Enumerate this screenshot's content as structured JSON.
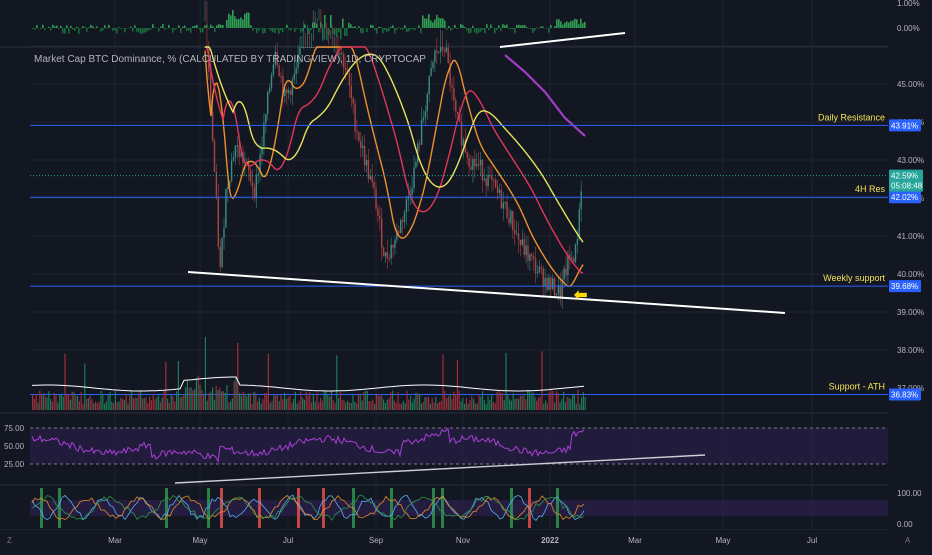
{
  "title": "Market Cap BTC Dominance, % (CALCULATED BY TRADINGVIEW), 1D, CRYPTOCAP",
  "colors": {
    "background": "#131722",
    "grid": "#1f2330",
    "hline": "#2962ff",
    "label_yellow": "#f5e356",
    "ema_yellow": "#e8e35a",
    "ema_red": "#e0365a",
    "ema_orange": "#f0902d",
    "ema_purple": "#a33cc4",
    "candle_up": "#26a69a",
    "candle_down": "#ef5350",
    "price_badge": "#26a69a",
    "level_badge": "#2962ff",
    "arrow": "#ffd800"
  },
  "icons": {
    "arrow": "arrow-left-icon",
    "settings_z": "z-icon",
    "auto": "a-icon"
  },
  "chart_data": [
    {
      "type": "line",
      "panel": "main",
      "x_ticks": [
        "Mar",
        "May",
        "Jul",
        "Sep",
        "Nov",
        "2022",
        "Mar",
        "May",
        "Jul"
      ],
      "y_ticks": [
        "45.00%",
        "44.00%",
        "43.00%",
        "42.00%",
        "41.00%",
        "40.00%",
        "39.00%",
        "38.00%",
        "37.00%"
      ],
      "ylim": [
        36.5,
        46.5
      ],
      "last_price": "42.59%",
      "countdown": "05:08:48",
      "levels": [
        {
          "label": "Daily Resistance",
          "value": 43.91,
          "badge": "43.91%"
        },
        {
          "label": "4H Res",
          "value": 42.02,
          "badge": "42.02%"
        },
        {
          "label": "Weekly support",
          "value": 39.68,
          "badge": "39.68%"
        },
        {
          "label": "Support - ATH",
          "value": 36.83,
          "badge": "36.83%"
        }
      ],
      "series": [
        {
          "x": [
            "May",
            "Jun",
            "Jul",
            "Aug",
            "Sep",
            "Oct",
            "Nov",
            "Dec",
            "2022"
          ],
          "values": [
            46.5,
            42.5,
            44.5,
            45.5,
            40.2,
            43.6,
            42.8,
            39.9,
            40.9
          ]
        },
        {
          "x": [
            "May",
            "Jun",
            "Jul",
            "Aug",
            "Sep",
            "Oct",
            "Nov",
            "Dec",
            "2022"
          ],
          "values": [
            46.5,
            42.8,
            43.8,
            44.8,
            41.0,
            43.0,
            42.5,
            40.2,
            40.5
          ]
        }
      ]
    },
    {
      "type": "line",
      "panel": "rsi",
      "y_ticks": [
        "75.00",
        "50.00",
        "25.00"
      ],
      "ylim": [
        10,
        90
      ]
    },
    {
      "type": "line",
      "panel": "stochastic",
      "y_ticks": [
        "100.00",
        "0.00"
      ],
      "ylim": [
        0,
        100
      ]
    },
    {
      "type": "bar",
      "panel": "top-oscillator",
      "y_ticks": [
        "1.00%",
        "0.00%"
      ]
    }
  ]
}
